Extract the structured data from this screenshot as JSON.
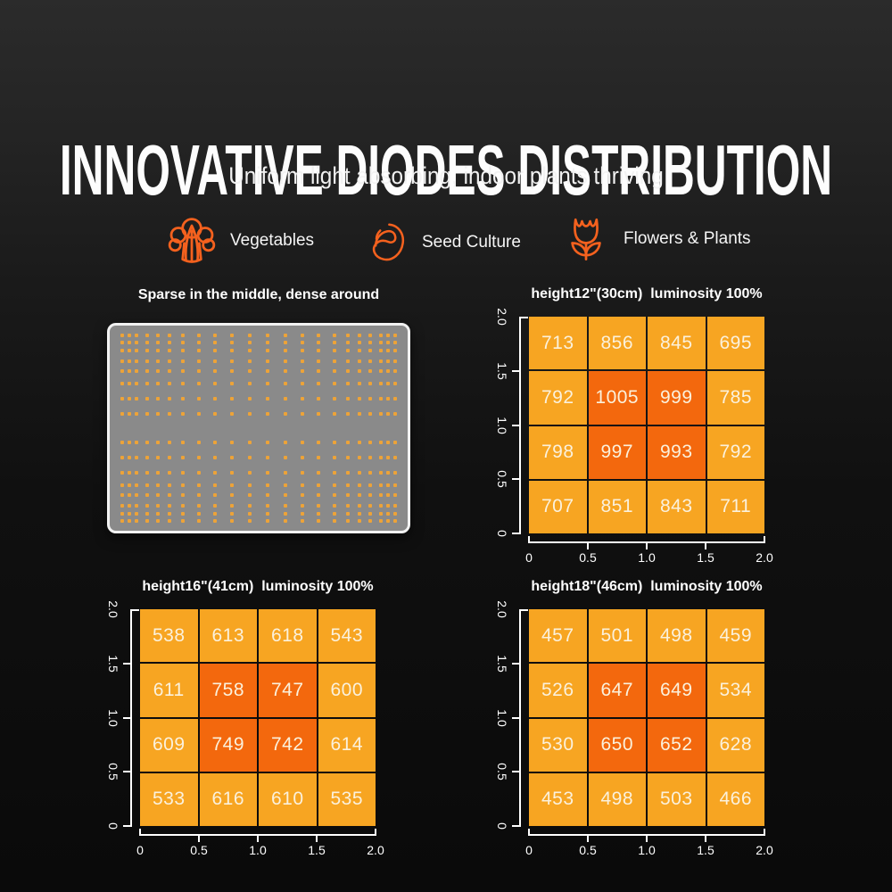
{
  "header": {
    "title": "INNOVATIVE DIODES DISTRIBUTION",
    "subtitle": "Uniform light absorbing, indoor plants thriving"
  },
  "plant_types": [
    {
      "icon": "broccoli-icon",
      "label": "Vegetables"
    },
    {
      "icon": "seed-icon",
      "label": "Seed Culture"
    },
    {
      "icon": "flower-icon",
      "label": "Flowers & Plants"
    }
  ],
  "colors": {
    "accent_orange": "#F4611E",
    "cell_light": "#F7A522",
    "cell_hot": "#F3680D",
    "cell_text": "#FBF1DC",
    "grid_line": "#FFFFFF",
    "dot": "#EDA338",
    "panel_gray": "#8A8A8A"
  },
  "diode_panel": {
    "title": "Sparse in the middle, dense around",
    "rows_pct": [
      3.0,
      6.8,
      11.0,
      16.1,
      21.2,
      27.5,
      35.2,
      42.8,
      57.2,
      64.8,
      72.5,
      78.8,
      83.9,
      89.0,
      93.2,
      97.0
    ],
    "cols_pct": [
      3.1,
      5.6,
      8.1,
      11.6,
      15.2,
      19.3,
      24.0,
      29.4,
      35.1,
      40.9,
      46.8,
      53.2,
      59.1,
      64.9,
      70.6,
      76.0,
      80.7,
      84.8,
      88.4,
      91.9,
      94.4,
      96.9
    ]
  },
  "chart_data": [
    {
      "type": "heatmap",
      "title": "height12\"(30cm)  luminosity 100%",
      "x_ticks": [
        "0",
        "0.5",
        "1.0",
        "1.5",
        "2.0"
      ],
      "y_ticks": [
        "2.0",
        "1.5",
        "1.0",
        "0.5",
        "0"
      ],
      "xlim": [
        0,
        2
      ],
      "ylim": [
        0,
        2
      ],
      "rows": [
        [
          713,
          856,
          845,
          695
        ],
        [
          792,
          1005,
          999,
          785
        ],
        [
          798,
          997,
          993,
          792
        ],
        [
          707,
          851,
          843,
          711
        ]
      ],
      "hot_threshold": 900
    },
    {
      "type": "heatmap",
      "title": "height16\"(41cm)  luminosity 100%",
      "x_ticks": [
        "0",
        "0.5",
        "1.0",
        "1.5",
        "2.0"
      ],
      "y_ticks": [
        "2.0",
        "1.5",
        "1.0",
        "0.5",
        "0"
      ],
      "xlim": [
        0,
        2
      ],
      "ylim": [
        0,
        2
      ],
      "rows": [
        [
          538,
          613,
          618,
          543
        ],
        [
          611,
          758,
          747,
          600
        ],
        [
          609,
          749,
          742,
          614
        ],
        [
          533,
          616,
          610,
          535
        ]
      ],
      "hot_threshold": 700
    },
    {
      "type": "heatmap",
      "title": "height18\"(46cm)  luminosity 100%",
      "x_ticks": [
        "0",
        "0.5",
        "1.0",
        "1.5",
        "2.0"
      ],
      "y_ticks": [
        "2.0",
        "1.5",
        "1.0",
        "0.5",
        "0"
      ],
      "xlim": [
        0,
        2
      ],
      "ylim": [
        0,
        2
      ],
      "rows": [
        [
          457,
          501,
          498,
          459
        ],
        [
          526,
          647,
          649,
          534
        ],
        [
          530,
          650,
          652,
          628
        ],
        [
          453,
          498,
          503,
          466
        ]
      ],
      "hot_threshold": 640
    }
  ]
}
